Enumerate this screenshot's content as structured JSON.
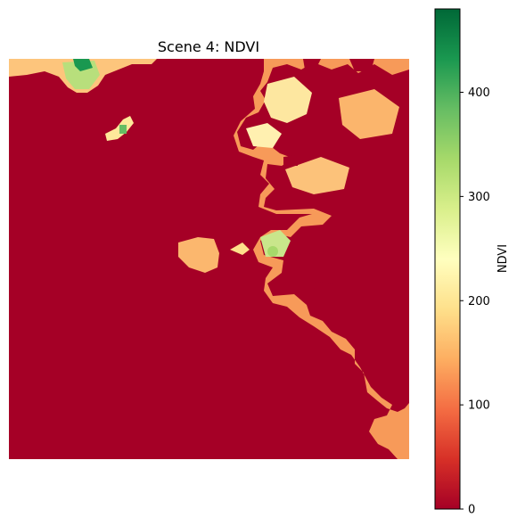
{
  "chart_data": {
    "type": "heatmap",
    "title": "Scene 4: NDVI",
    "colorbar": {
      "label": "NDVI",
      "range": [
        0,
        480
      ],
      "ticks": [
        0,
        100,
        200,
        300,
        400
      ],
      "tick_labels": [
        "0",
        "100",
        "200",
        "300",
        "400"
      ],
      "colormap": "RdYlGn"
    },
    "axes_visible": false,
    "regions": [
      {
        "name": "background-low",
        "description": "most of the scene",
        "value": 0
      },
      {
        "name": "eastern-land-mass",
        "description": "right side of scene",
        "value_range": [
          100,
          250
        ]
      },
      {
        "name": "northern-strip",
        "description": "top edge",
        "value_range": [
          150,
          480
        ]
      },
      {
        "name": "central-islet",
        "description": "small island near center",
        "value_range": [
          130,
          200
        ]
      },
      {
        "name": "north-west-speck",
        "description": "tiny patch upper left",
        "value_range": [
          250,
          380
        ]
      }
    ]
  },
  "colors": {
    "low": "#a50026",
    "high": "#006837"
  }
}
